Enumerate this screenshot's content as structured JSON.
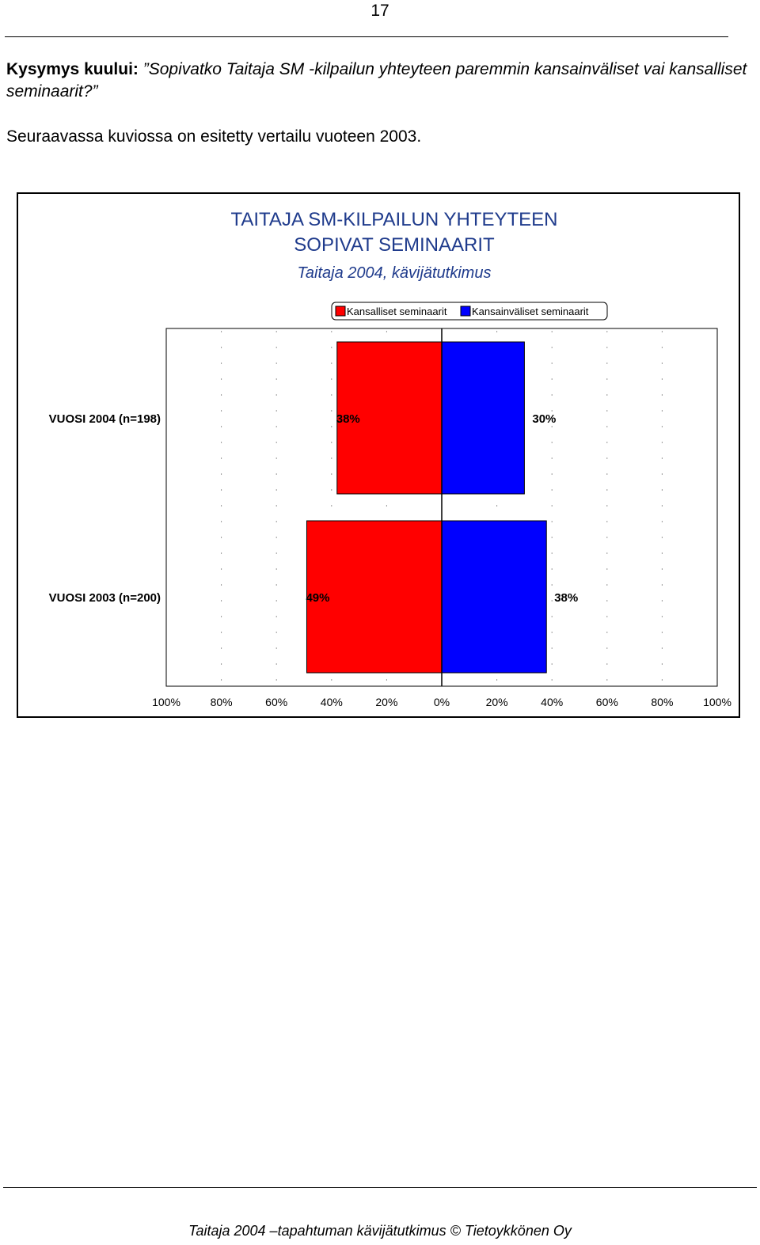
{
  "page": {
    "number": "17",
    "question_label": "Kysymys kuului:",
    "question_text": "”Sopivatko Taitaja SM -kilpailun yhteyteen paremmin kansainväliset vai kansalliset seminaarit?”",
    "intro": "Seuraavassa kuviossa on esitetty vertailu vuoteen 2003.",
    "footer": "Taitaja 2004 –tapahtuman kävijätutkimus  © Tietoykkönen Oy"
  },
  "chart_data": {
    "type": "bar",
    "orientation": "horizontal-diverging",
    "title_line1": "TAITAJA SM-KILPAILUN YHTEYTEEN",
    "title_line2": "SOPIVAT SEMINAARIT",
    "subtitle": "Taitaja 2004, kävijätutkimus",
    "legend_placement": "top-center",
    "categories": [
      "VUOSI 2004 (n=198)",
      "VUOSI 2003 (n=200)"
    ],
    "series": [
      {
        "name": "Kansalliset seminaarit",
        "side": "left",
        "color": "#ff0000",
        "values": [
          38,
          49
        ],
        "labels": [
          "38%",
          "49%"
        ]
      },
      {
        "name": "Kansainväliset seminaarit",
        "side": "right",
        "color": "#0000ff",
        "values": [
          30,
          38
        ],
        "labels": [
          "30%",
          "38%"
        ]
      }
    ],
    "x_range": [
      -100,
      100
    ],
    "x_ticks": [
      -100,
      -80,
      -60,
      -40,
      -20,
      0,
      20,
      40,
      60,
      80,
      100
    ],
    "x_tick_labels": [
      "100%",
      "80%",
      "60%",
      "40%",
      "20%",
      "0%",
      "20%",
      "40%",
      "60%",
      "80%",
      "100%"
    ],
    "grid": true
  }
}
